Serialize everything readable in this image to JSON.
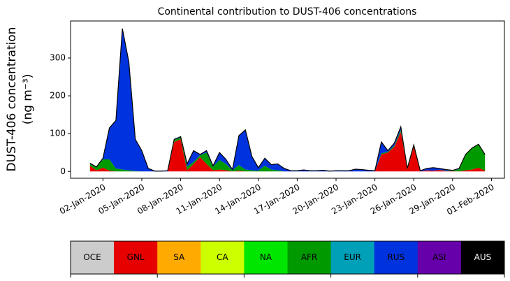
{
  "chart_data": {
    "type": "stacked_area",
    "title": "Continental contribution to DUST-406 concentrations",
    "ylabel": [
      "DUST-406 concentration",
      "(ng m⁻³)"
    ],
    "x": [
      "2020-01-01T00:00",
      "2020-01-01T12:00",
      "2020-01-02T00:00",
      "2020-01-02T12:00",
      "2020-01-03T00:00",
      "2020-01-03T12:00",
      "2020-01-04T00:00",
      "2020-01-04T12:00",
      "2020-01-05T00:00",
      "2020-01-05T12:00",
      "2020-01-06T00:00",
      "2020-01-06T12:00",
      "2020-01-07T00:00",
      "2020-01-07T12:00",
      "2020-01-08T00:00",
      "2020-01-08T12:00",
      "2020-01-09T00:00",
      "2020-01-09T12:00",
      "2020-01-10T00:00",
      "2020-01-10T12:00",
      "2020-01-11T00:00",
      "2020-01-11T12:00",
      "2020-01-12T00:00",
      "2020-01-12T12:00",
      "2020-01-13T00:00",
      "2020-01-13T12:00",
      "2020-01-14T00:00",
      "2020-01-14T12:00",
      "2020-01-15T00:00",
      "2020-01-15T12:00",
      "2020-01-16T00:00",
      "2020-01-16T12:00",
      "2020-01-17T00:00",
      "2020-01-17T12:00",
      "2020-01-18T00:00",
      "2020-01-18T12:00",
      "2020-01-19T00:00",
      "2020-01-19T12:00",
      "2020-01-20T00:00",
      "2020-01-20T12:00",
      "2020-01-21T00:00",
      "2020-01-21T12:00",
      "2020-01-22T00:00",
      "2020-01-22T12:00",
      "2020-01-23T00:00",
      "2020-01-23T12:00",
      "2020-01-24T00:00",
      "2020-01-24T12:00",
      "2020-01-25T00:00",
      "2020-01-25T12:00",
      "2020-01-26T00:00",
      "2020-01-26T12:00",
      "2020-01-27T00:00",
      "2020-01-27T12:00",
      "2020-01-28T00:00",
      "2020-01-28T12:00",
      "2020-01-29T00:00",
      "2020-01-29T12:00",
      "2020-01-30T00:00",
      "2020-01-30T12:00",
      "2020-01-31T00:00",
      "2020-01-31T12:00"
    ],
    "series": [
      {
        "name": "OCE",
        "color": "#cccccc",
        "values": [
          0,
          0,
          0,
          0,
          0,
          0,
          0,
          0,
          0,
          0,
          0,
          0,
          0,
          0,
          0,
          0,
          0,
          0,
          0,
          0,
          0,
          0,
          0,
          0,
          0,
          0,
          0,
          0,
          0,
          0,
          0,
          0,
          0,
          0,
          0,
          0,
          0,
          0,
          0,
          0,
          0,
          0,
          0,
          0,
          0,
          0,
          0,
          0,
          0,
          0,
          0,
          0,
          0,
          0,
          0,
          0,
          0,
          0,
          0,
          0,
          0,
          0
        ]
      },
      {
        "name": "GNL",
        "color": "#e60000",
        "values": [
          15,
          3,
          10,
          2,
          0,
          0,
          0,
          0,
          0,
          0,
          0,
          0,
          0,
          78,
          85,
          3,
          20,
          38,
          20,
          3,
          5,
          3,
          0,
          2,
          0,
          0,
          0,
          0,
          0,
          0,
          0,
          0,
          0,
          0,
          0,
          0,
          0,
          0,
          0,
          0,
          0,
          0,
          0,
          0,
          0,
          45,
          50,
          65,
          105,
          5,
          65,
          0,
          3,
          2,
          4,
          1,
          1,
          0,
          3,
          5,
          10,
          2
        ]
      },
      {
        "name": "SA",
        "color": "#ffaa00",
        "values": [
          0,
          0,
          0,
          0,
          0,
          0,
          0,
          0,
          0,
          0,
          0,
          0,
          0,
          0,
          0,
          0,
          0,
          0,
          0,
          0,
          0,
          0,
          0,
          0,
          0,
          0,
          0,
          0,
          0,
          0,
          0,
          0,
          0,
          0,
          0,
          0,
          0,
          0,
          0,
          0,
          0,
          0,
          0,
          0,
          0,
          0,
          0,
          0,
          0,
          0,
          0,
          0,
          0,
          0,
          0,
          0,
          0,
          0,
          0,
          0,
          0,
          0
        ]
      },
      {
        "name": "CA",
        "color": "#ccff00",
        "values": [
          0,
          0,
          0,
          0,
          0,
          0,
          0,
          0,
          0,
          0,
          0,
          0,
          0,
          0,
          0,
          0,
          0,
          0,
          0,
          0,
          0,
          0,
          0,
          0,
          0,
          0,
          0,
          0,
          0,
          0,
          0,
          0,
          0,
          0,
          0,
          0,
          0,
          0,
          0,
          0,
          0,
          0,
          0,
          0,
          0,
          0,
          0,
          0,
          0,
          0,
          0,
          0,
          0,
          0,
          0,
          0,
          0,
          0,
          0,
          0,
          0,
          0
        ]
      },
      {
        "name": "NA",
        "color": "#00e600",
        "values": [
          0,
          0,
          0,
          0,
          0,
          0,
          0,
          0,
          0,
          0,
          0,
          0,
          0,
          0,
          0,
          0,
          0,
          0,
          0,
          0,
          0,
          0,
          0,
          0,
          0,
          0,
          0,
          0,
          0,
          0,
          0,
          0,
          0,
          0,
          0,
          0,
          0,
          0,
          0,
          0,
          0,
          0,
          0,
          0,
          0,
          0,
          0,
          0,
          0,
          0,
          0,
          0,
          0,
          0,
          0,
          0,
          0,
          0,
          0,
          0,
          0,
          0
        ]
      },
      {
        "name": "AFR",
        "color": "#009900",
        "values": [
          5,
          8,
          22,
          30,
          8,
          5,
          3,
          1,
          0,
          0,
          0,
          0,
          0,
          5,
          5,
          10,
          5,
          5,
          30,
          10,
          25,
          17,
          3,
          15,
          5,
          3,
          2,
          15,
          5,
          3,
          0,
          0,
          0,
          0,
          0,
          0,
          0,
          0,
          0,
          0,
          0,
          0,
          0,
          0,
          0,
          3,
          2,
          3,
          5,
          3,
          3,
          0,
          0,
          0,
          0,
          1,
          1,
          6,
          42,
          57,
          62,
          43
        ]
      },
      {
        "name": "EUR",
        "color": "#00a0b8",
        "values": [
          0,
          0,
          0,
          0,
          0,
          0,
          0,
          0,
          0,
          0,
          0,
          0,
          0,
          0,
          0,
          0,
          0,
          0,
          0,
          0,
          0,
          0,
          0,
          0,
          0,
          0,
          0,
          0,
          0,
          0,
          0,
          0,
          0,
          0,
          0,
          0,
          0,
          0,
          0,
          0,
          0,
          0,
          0,
          0,
          0,
          0,
          0,
          0,
          0,
          0,
          0,
          0,
          0,
          0,
          0,
          0,
          0,
          0,
          0,
          0,
          0,
          0
        ]
      },
      {
        "name": "RUS",
        "color": "#0033dd",
        "values": [
          2,
          1,
          3,
          83,
          127,
          373,
          287,
          84,
          55,
          8,
          1,
          1,
          2,
          2,
          2,
          7,
          30,
          2,
          5,
          2,
          20,
          12,
          2,
          78,
          105,
          37,
          8,
          20,
          13,
          17,
          8,
          2,
          2,
          4,
          2,
          2,
          3,
          1,
          2,
          2,
          2,
          6,
          5,
          3,
          2,
          30,
          3,
          7,
          8,
          0,
          2,
          2,
          5,
          8,
          4,
          3,
          1,
          2,
          0,
          0,
          0,
          0
        ]
      },
      {
        "name": "ASI",
        "color": "#6600aa",
        "values": [
          0,
          0,
          0,
          0,
          0,
          0,
          0,
          0,
          0,
          0,
          0,
          0,
          0,
          0,
          0,
          0,
          0,
          0,
          0,
          0,
          0,
          0,
          0,
          0,
          0,
          0,
          0,
          0,
          0,
          0,
          0,
          0,
          0,
          0,
          0,
          0,
          0,
          0,
          0,
          0,
          0,
          0,
          0,
          0,
          0,
          0,
          0,
          0,
          0,
          0,
          0,
          0,
          0,
          0,
          0,
          0,
          0,
          0,
          0,
          0,
          0,
          0
        ]
      },
      {
        "name": "AUS",
        "color": "#000000",
        "values": [
          0,
          0,
          0,
          0,
          0,
          0,
          0,
          0,
          0,
          0,
          0,
          0,
          0,
          0,
          0,
          0,
          0,
          0,
          0,
          0,
          0,
          0,
          0,
          0,
          0,
          0,
          0,
          0,
          0,
          0,
          0,
          0,
          0,
          0,
          0,
          0,
          0,
          0,
          0,
          0,
          0,
          0,
          0,
          0,
          0,
          0,
          0,
          0,
          0,
          0,
          0,
          0,
          0,
          0,
          0,
          0,
          0,
          0,
          0,
          0,
          0,
          0
        ]
      }
    ],
    "xlim": [
      "2019-12-30T12:00",
      "2020-02-02T00:00"
    ],
    "xticks": [
      {
        "value": "2020-01-02T00:00",
        "label": "02-Jan-2020"
      },
      {
        "value": "2020-01-05T00:00",
        "label": "05-Jan-2020"
      },
      {
        "value": "2020-01-08T00:00",
        "label": "08-Jan-2020"
      },
      {
        "value": "2020-01-11T00:00",
        "label": "11-Jan-2020"
      },
      {
        "value": "2020-01-14T00:00",
        "label": "14-Jan-2020"
      },
      {
        "value": "2020-01-17T00:00",
        "label": "17-Jan-2020"
      },
      {
        "value": "2020-01-20T00:00",
        "label": "20-Jan-2020"
      },
      {
        "value": "2020-01-23T00:00",
        "label": "23-Jan-2020"
      },
      {
        "value": "2020-01-26T00:00",
        "label": "26-Jan-2020"
      },
      {
        "value": "2020-01-29T00:00",
        "label": "29-Jan-2020"
      },
      {
        "value": "2020-02-01T00:00",
        "label": "01-Feb-2020"
      }
    ],
    "ylim": [
      -18,
      398
    ],
    "yticks": [
      0,
      100,
      200,
      300
    ],
    "grid": false
  }
}
